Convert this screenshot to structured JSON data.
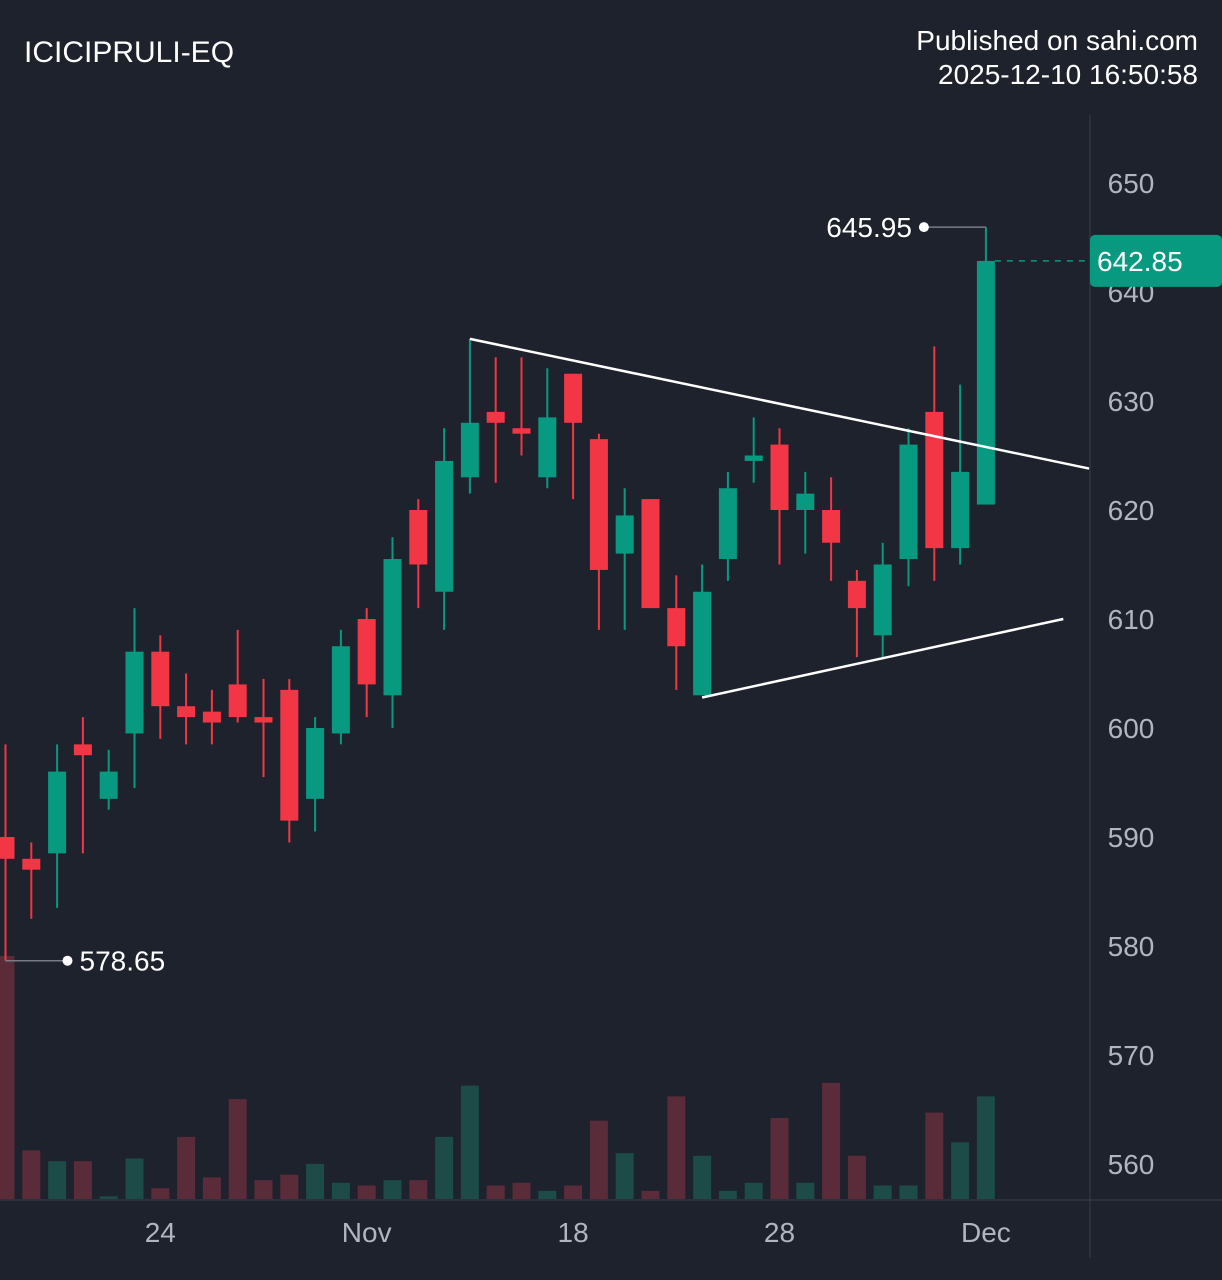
{
  "header": {
    "symbol": "ICICIPRULI-EQ",
    "published": "Published on sahi.com",
    "timestamp": "2025-12-10 16:50:58"
  },
  "colors": {
    "background": "#1e222d",
    "up": "#089981",
    "down": "#f23645",
    "volume_up": "#1d4b47",
    "volume_down": "#5a2b38",
    "axis_text": "#b2b5be",
    "trendline": "#ffffff"
  },
  "chart_data": {
    "type": "candlestick",
    "symbol": "ICICIPRULI-EQ",
    "y_axis": {
      "ticks": [
        560,
        570,
        580,
        590,
        600,
        610,
        620,
        630,
        640,
        650
      ],
      "side": "right"
    },
    "x_axis": {
      "ticks": [
        {
          "label": "24",
          "index": 6
        },
        {
          "label": "Nov",
          "index": 14
        },
        {
          "label": "18",
          "index": 22
        },
        {
          "label": "28",
          "index": 30
        },
        {
          "label": "Dec",
          "index": 38
        }
      ]
    },
    "last_price": "642.85",
    "annotations": [
      {
        "label": "645.95",
        "index": 38,
        "price": 645.95,
        "type": "high"
      },
      {
        "label": "578.65",
        "index": 0,
        "price": 578.65,
        "type": "low"
      }
    ],
    "trendlines": [
      {
        "name": "upper",
        "from": [
          18,
          635.7
        ],
        "to": [
          42,
          623.8
        ]
      },
      {
        "name": "lower",
        "from": [
          27,
          602.8
        ],
        "to": [
          41,
          610.0
        ]
      }
    ],
    "candles": [
      {
        "o": 590.0,
        "h": 598.5,
        "l": 578.65,
        "c": 588.0,
        "v": 0.9
      },
      {
        "o": 588.0,
        "h": 589.5,
        "l": 582.5,
        "c": 587.0,
        "v": 0.18
      },
      {
        "o": 588.5,
        "h": 598.5,
        "l": 583.5,
        "c": 596.0,
        "v": 0.14
      },
      {
        "o": 598.5,
        "h": 601.0,
        "l": 588.5,
        "c": 597.5,
        "v": 0.14
      },
      {
        "o": 593.5,
        "h": 598.0,
        "l": 592.5,
        "c": 596.0,
        "v": 0.01
      },
      {
        "o": 599.5,
        "h": 611.0,
        "l": 594.5,
        "c": 607.0,
        "v": 0.15
      },
      {
        "o": 607.0,
        "h": 608.5,
        "l": 599.0,
        "c": 602.0,
        "v": 0.04
      },
      {
        "o": 602.0,
        "h": 605.0,
        "l": 598.5,
        "c": 601.0,
        "v": 0.23
      },
      {
        "o": 601.5,
        "h": 603.5,
        "l": 598.5,
        "c": 600.5,
        "v": 0.08
      },
      {
        "o": 604.0,
        "h": 609.0,
        "l": 600.5,
        "c": 601.0,
        "v": 0.37
      },
      {
        "o": 601.0,
        "h": 604.5,
        "l": 595.5,
        "c": 600.5,
        "v": 0.07
      },
      {
        "o": 603.5,
        "h": 604.5,
        "l": 589.5,
        "c": 591.5,
        "v": 0.09
      },
      {
        "o": 593.5,
        "h": 601.0,
        "l": 590.5,
        "c": 600.0,
        "v": 0.13
      },
      {
        "o": 599.5,
        "h": 609.0,
        "l": 598.5,
        "c": 607.5,
        "v": 0.06
      },
      {
        "o": 610.0,
        "h": 611.0,
        "l": 601.0,
        "c": 604.0,
        "v": 0.05
      },
      {
        "o": 603.0,
        "h": 617.5,
        "l": 600.0,
        "c": 615.5,
        "v": 0.07
      },
      {
        "o": 620.0,
        "h": 621.0,
        "l": 611.0,
        "c": 615.0,
        "v": 0.07
      },
      {
        "o": 612.5,
        "h": 627.5,
        "l": 609.0,
        "c": 624.5,
        "v": 0.23
      },
      {
        "o": 623.0,
        "h": 635.7,
        "l": 621.5,
        "c": 628.0,
        "v": 0.42
      },
      {
        "o": 629.0,
        "h": 634.0,
        "l": 622.5,
        "c": 628.0,
        "v": 0.05
      },
      {
        "o": 627.5,
        "h": 634.0,
        "l": 625.0,
        "c": 627.0,
        "v": 0.06
      },
      {
        "o": 623.0,
        "h": 633.0,
        "l": 622.0,
        "c": 628.5,
        "v": 0.03
      },
      {
        "o": 632.5,
        "h": 632.5,
        "l": 621.0,
        "c": 628.0,
        "v": 0.05
      },
      {
        "o": 626.5,
        "h": 627.0,
        "l": 609.0,
        "c": 614.5,
        "v": 0.29
      },
      {
        "o": 616.0,
        "h": 622.0,
        "l": 609.0,
        "c": 619.5,
        "v": 0.17
      },
      {
        "o": 621.0,
        "h": 621.0,
        "l": 611.0,
        "c": 611.0,
        "v": 0.03
      },
      {
        "o": 611.0,
        "h": 614.0,
        "l": 603.5,
        "c": 607.5,
        "v": 0.38
      },
      {
        "o": 603.0,
        "h": 615.0,
        "l": 603.0,
        "c": 612.5,
        "v": 0.16
      },
      {
        "o": 615.5,
        "h": 623.5,
        "l": 613.5,
        "c": 622.0,
        "v": 0.03
      },
      {
        "o": 624.5,
        "h": 628.5,
        "l": 622.5,
        "c": 625.0,
        "v": 0.06
      },
      {
        "o": 626.0,
        "h": 627.5,
        "l": 615.0,
        "c": 620.0,
        "v": 0.3
      },
      {
        "o": 620.0,
        "h": 623.5,
        "l": 616.0,
        "c": 621.5,
        "v": 0.06
      },
      {
        "o": 620.0,
        "h": 623.0,
        "l": 613.5,
        "c": 617.0,
        "v": 0.43
      },
      {
        "o": 613.5,
        "h": 614.5,
        "l": 606.5,
        "c": 611.0,
        "v": 0.16
      },
      {
        "o": 608.5,
        "h": 617.0,
        "l": 606.5,
        "c": 615.0,
        "v": 0.05
      },
      {
        "o": 615.5,
        "h": 627.5,
        "l": 613.0,
        "c": 626.0,
        "v": 0.05
      },
      {
        "o": 629.0,
        "h": 635.0,
        "l": 613.5,
        "c": 616.5,
        "v": 0.32
      },
      {
        "o": 616.5,
        "h": 631.5,
        "l": 615.0,
        "c": 623.5,
        "v": 0.21
      },
      {
        "o": 620.5,
        "h": 645.95,
        "l": 620.5,
        "c": 642.85,
        "v": 0.38
      }
    ]
  }
}
